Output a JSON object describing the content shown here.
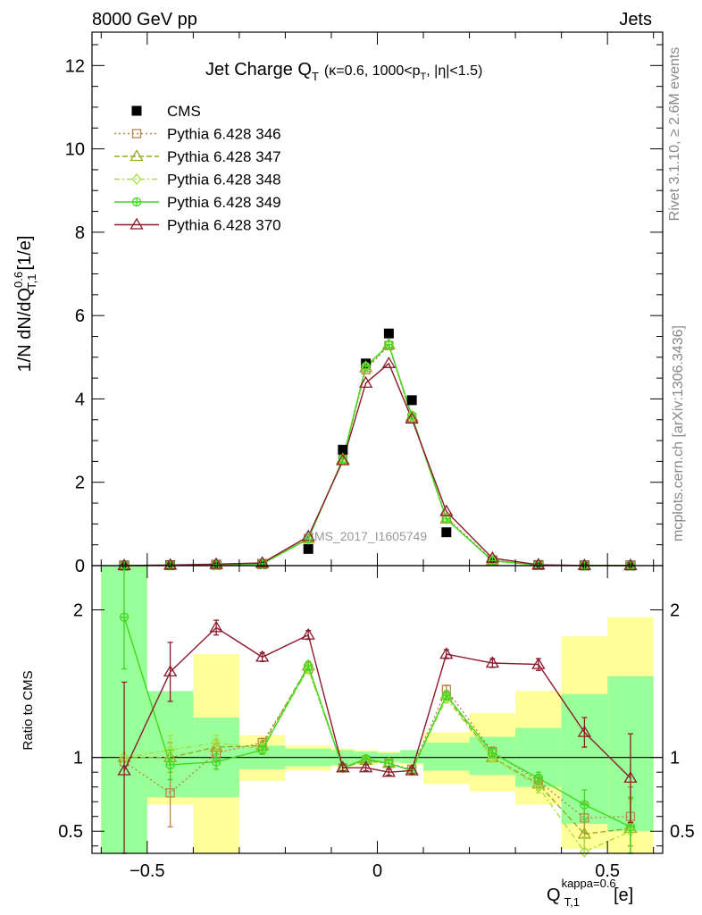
{
  "header": {
    "left": "8000 GeV pp",
    "right": "Jets"
  },
  "side_labels": {
    "version": "Rivet 3.1.10, ≥ 2.6M events",
    "source": "mcplots.cern.ch [arXiv:1306.3436]"
  },
  "watermark": "CMS_2017_I1605749",
  "colors": {
    "data": "#000000",
    "p346": "#b8864b",
    "p347": "#9aaa1e",
    "p348": "#a8e040",
    "p349": "#40d820",
    "p370": "#8b1a2b",
    "band_inner": "#99ff99",
    "band_outer": "#ffff99"
  },
  "chart_data": [
    {
      "type": "scatter",
      "panel": "main",
      "title_main": "Jet Charge Q",
      "title_sub": "T",
      "title_params_pre": "(κ=0.6, 1000<p",
      "title_params_sub": "T",
      "title_params_post": ", |η|<1.5)",
      "ylabel": "1/N dN/dQ",
      "ylabel_sup": "0.6",
      "ylabel_sub": "T,1",
      "ylabel_unit": "[1/e]",
      "xlim": [
        -0.62,
        0.62
      ],
      "ylim": [
        0,
        12.8
      ],
      "yticks": [
        0,
        2,
        4,
        6,
        8,
        10,
        12
      ],
      "x": [
        -0.55,
        -0.45,
        -0.35,
        -0.25,
        -0.15,
        -0.075,
        -0.025,
        0.025,
        0.075,
        0.15,
        0.25,
        0.35,
        0.45,
        0.55
      ],
      "legend_position": "top-left",
      "series": [
        {
          "name": "CMS",
          "key": "data",
          "marker": "square-filled",
          "values": [
            0.004,
            0.01,
            0.02,
            0.04,
            0.4,
            2.78,
            4.85,
            5.57,
            3.97,
            0.8,
            0.12,
            0.012,
            0.004,
            0.002
          ]
        },
        {
          "name": "Pythia 6.428 346",
          "key": "p346",
          "marker": "square-open",
          "dash": "2,3",
          "values": [
            0.004,
            0.008,
            0.02,
            0.045,
            0.65,
            2.55,
            4.7,
            5.28,
            3.55,
            1.15,
            0.14,
            0.01,
            0.002,
            0.001
          ]
        },
        {
          "name": "Pythia 6.428 347",
          "key": "p347",
          "marker": "triangle-open",
          "dash": "6,3",
          "values": [
            0.004,
            0.01,
            0.021,
            0.043,
            0.65,
            2.55,
            4.75,
            5.3,
            3.57,
            1.12,
            0.12,
            0.01,
            0.002,
            0.001
          ]
        },
        {
          "name": "Pythia 6.428 348",
          "key": "p348",
          "marker": "diamond-open",
          "dash": "6,3,2,3",
          "values": [
            0.004,
            0.01,
            0.022,
            0.042,
            0.64,
            2.56,
            4.78,
            5.3,
            3.58,
            1.12,
            0.12,
            0.01,
            0.0015,
            0.001
          ]
        },
        {
          "name": "Pythia 6.428 349",
          "key": "p349",
          "marker": "cross-circle",
          "dash": "",
          "values": [
            0.007,
            0.009,
            0.019,
            0.042,
            0.64,
            2.56,
            4.78,
            5.3,
            3.6,
            1.12,
            0.12,
            0.01,
            0.003,
            0.001
          ]
        },
        {
          "name": "Pythia 6.428 370",
          "key": "p370",
          "marker": "triangle-open",
          "dash": "",
          "values": [
            0.003,
            0.015,
            0.036,
            0.065,
            0.7,
            2.52,
            4.38,
            4.85,
            3.52,
            1.3,
            0.18,
            0.02,
            0.005,
            0.002
          ]
        }
      ]
    },
    {
      "type": "line",
      "panel": "ratio",
      "ylabel": "Ratio to CMS",
      "xlabel": "Q",
      "xlabel_sup": "kappa=0.6",
      "xlabel_sub": "T,1",
      "xlabel_unit": "[e]",
      "xlim": [
        -0.62,
        0.62
      ],
      "ylim": [
        0.35,
        2.3
      ],
      "yticks": [
        0.5,
        1,
        2
      ],
      "xticks": [
        -0.5,
        0,
        0.5
      ],
      "reference": 1,
      "bin_edges": [
        -0.6,
        -0.5,
        -0.4,
        -0.3,
        -0.2,
        -0.1,
        -0.05,
        0,
        0.05,
        0.1,
        0.2,
        0.3,
        0.4,
        0.5,
        0.6
      ],
      "band_inner": [
        [
          0.35,
          2.3
        ],
        [
          0.73,
          1.45
        ],
        [
          0.73,
          1.27
        ],
        [
          0.92,
          1.08
        ],
        [
          0.94,
          1.06
        ],
        [
          0.95,
          1.05
        ],
        [
          0.96,
          1.04
        ],
        [
          0.97,
          1.03
        ],
        [
          0.96,
          1.05
        ],
        [
          0.91,
          1.1
        ],
        [
          0.88,
          1.14
        ],
        [
          0.8,
          1.2
        ],
        [
          0.55,
          1.43
        ],
        [
          0.5,
          1.55
        ]
      ],
      "band_outer": [
        [
          0.35,
          2.3
        ],
        [
          0.68,
          1.42
        ],
        [
          0.35,
          1.7
        ],
        [
          0.84,
          1.15
        ],
        [
          0.91,
          1.08
        ],
        [
          0.94,
          1.06
        ],
        [
          0.95,
          1.05
        ],
        [
          0.96,
          1.04
        ],
        [
          0.95,
          1.05
        ],
        [
          0.82,
          1.17
        ],
        [
          0.77,
          1.3
        ],
        [
          0.68,
          1.45
        ],
        [
          0.38,
          1.82
        ],
        [
          0.35,
          1.95
        ]
      ],
      "x": [
        -0.55,
        -0.45,
        -0.35,
        -0.25,
        -0.15,
        -0.075,
        -0.025,
        0.025,
        0.075,
        0.15,
        0.25,
        0.35,
        0.45,
        0.55
      ],
      "series": [
        {
          "name": "Pythia 6.428 346",
          "key": "p346",
          "marker": "square-open",
          "dash": "2,3",
          "values": [
            0.97,
            0.76,
            1.03,
            1.1,
            1.6,
            0.93,
            0.98,
            0.96,
            0.92,
            1.46,
            1.04,
            0.84,
            0.59,
            0.6
          ],
          "errors": [
            0,
            0.23,
            0.05,
            0.03,
            0.03,
            0.02,
            0.02,
            0.02,
            0.02,
            0.03,
            0.03,
            0.04,
            0.1,
            0.2
          ]
        },
        {
          "name": "Pythia 6.428 347",
          "key": "p347",
          "marker": "triangle-open",
          "dash": "6,3",
          "values": [
            1.0,
            1.0,
            1.07,
            1.08,
            1.62,
            0.93,
            0.98,
            0.96,
            0.91,
            1.42,
            1.0,
            0.82,
            0.48,
            0.52
          ],
          "errors": [
            0,
            0.1,
            0.05,
            0.03,
            0.03,
            0.02,
            0.02,
            0.02,
            0.02,
            0.03,
            0.03,
            0.04,
            0.1,
            0.2
          ]
        },
        {
          "name": "Pythia 6.428 348",
          "key": "p348",
          "marker": "diamond-open",
          "dash": "6,3,2,3",
          "values": [
            1.0,
            1.05,
            1.1,
            1.06,
            1.6,
            0.93,
            0.99,
            0.96,
            0.91,
            1.4,
            1.0,
            0.8,
            0.36,
            0.5
          ],
          "errors": [
            0,
            0.1,
            0.05,
            0.03,
            0.03,
            0.02,
            0.02,
            0.02,
            0.02,
            0.03,
            0.03,
            0.04,
            0.1,
            0.2
          ]
        },
        {
          "name": "Pythia 6.428 349",
          "key": "p349",
          "marker": "cross-circle",
          "dash": "",
          "values": [
            1.95,
            0.95,
            0.97,
            1.05,
            1.62,
            0.93,
            0.99,
            0.96,
            0.91,
            1.42,
            1.03,
            0.86,
            0.68,
            0.53
          ],
          "errors": [
            0.35,
            0.1,
            0.05,
            0.03,
            0.03,
            0.02,
            0.02,
            0.02,
            0.02,
            0.03,
            0.03,
            0.04,
            0.1,
            0.2
          ]
        },
        {
          "name": "Pythia 6.428 370",
          "key": "p370",
          "marker": "triangle-open",
          "dash": "",
          "values": [
            0.91,
            1.58,
            1.88,
            1.68,
            1.83,
            0.93,
            0.93,
            0.9,
            0.91,
            1.7,
            1.64,
            1.63,
            1.17,
            0.86
          ],
          "errors": [
            0.6,
            0.2,
            0.05,
            0.03,
            0.03,
            0.02,
            0.02,
            0.02,
            0.02,
            0.03,
            0.03,
            0.04,
            0.1,
            0.3
          ]
        }
      ]
    }
  ]
}
